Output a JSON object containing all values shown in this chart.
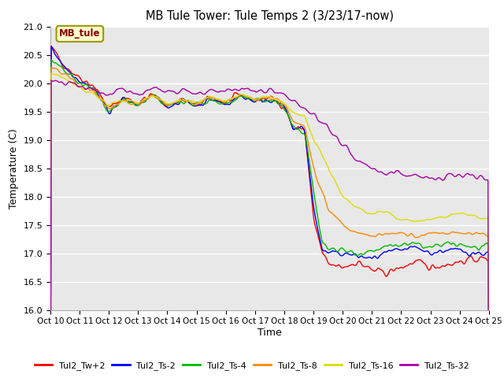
{
  "title": "MB Tule Tower: Tule Temps 2 (3/23/17-now)",
  "xlabel": "Time",
  "ylabel": "Temperature (C)",
  "ylim": [
    16.0,
    21.0
  ],
  "yticks": [
    16.0,
    16.5,
    17.0,
    17.5,
    18.0,
    18.5,
    19.0,
    19.5,
    20.0,
    20.5,
    21.0
  ],
  "xtick_labels": [
    "Oct 10",
    "Oct 11",
    "Oct 12",
    "Oct 13",
    "Oct 14",
    "Oct 15",
    "Oct 16",
    "Oct 17",
    "Oct 18",
    "Oct 19",
    "Oct 20",
    "Oct 21",
    "Oct 22",
    "Oct 23",
    "Oct 24",
    "Oct 25"
  ],
  "background_color": "#e8e8e8",
  "grid_color": "#ffffff",
  "series_colors": {
    "Tul2_Tw+2": "#ff0000",
    "Tul2_Ts-2": "#0000ff",
    "Tul2_Ts-4": "#00bb00",
    "Tul2_Ts-8": "#ff8800",
    "Tul2_Ts-16": "#dddd00",
    "Tul2_Ts-32": "#aa00aa"
  },
  "legend_box_color": "#ffffcc",
  "legend_box_edge": "#999900",
  "legend_text": "MB_tule",
  "n_points": 500,
  "figsize": [
    6.4,
    4.8
  ],
  "dpi": 100
}
